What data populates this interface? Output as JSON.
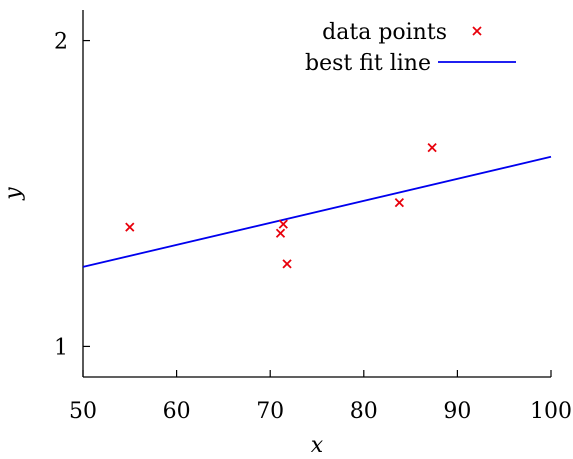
{
  "chart_data": {
    "type": "scatter",
    "title": "",
    "xlabel": "x",
    "ylabel": "y",
    "xlim": [
      50,
      100
    ],
    "ylim": [
      0.9,
      2.1
    ],
    "xticks": [
      50,
      60,
      70,
      80,
      90,
      100
    ],
    "yticks": [
      1,
      2
    ],
    "grid": false,
    "legend_position": "top-right",
    "series": [
      {
        "name": "data points",
        "kind": "scatter",
        "marker": "x",
        "color": "#e8000b",
        "x": [
          55.0,
          71.1,
          71.4,
          71.8,
          83.8,
          87.3
        ],
        "y": [
          1.39,
          1.37,
          1.4,
          1.27,
          1.47,
          1.65
        ]
      },
      {
        "name": "best fit line",
        "kind": "line",
        "color": "#0000ee",
        "x": [
          50,
          100
        ],
        "y": [
          1.26,
          1.62
        ]
      }
    ]
  }
}
